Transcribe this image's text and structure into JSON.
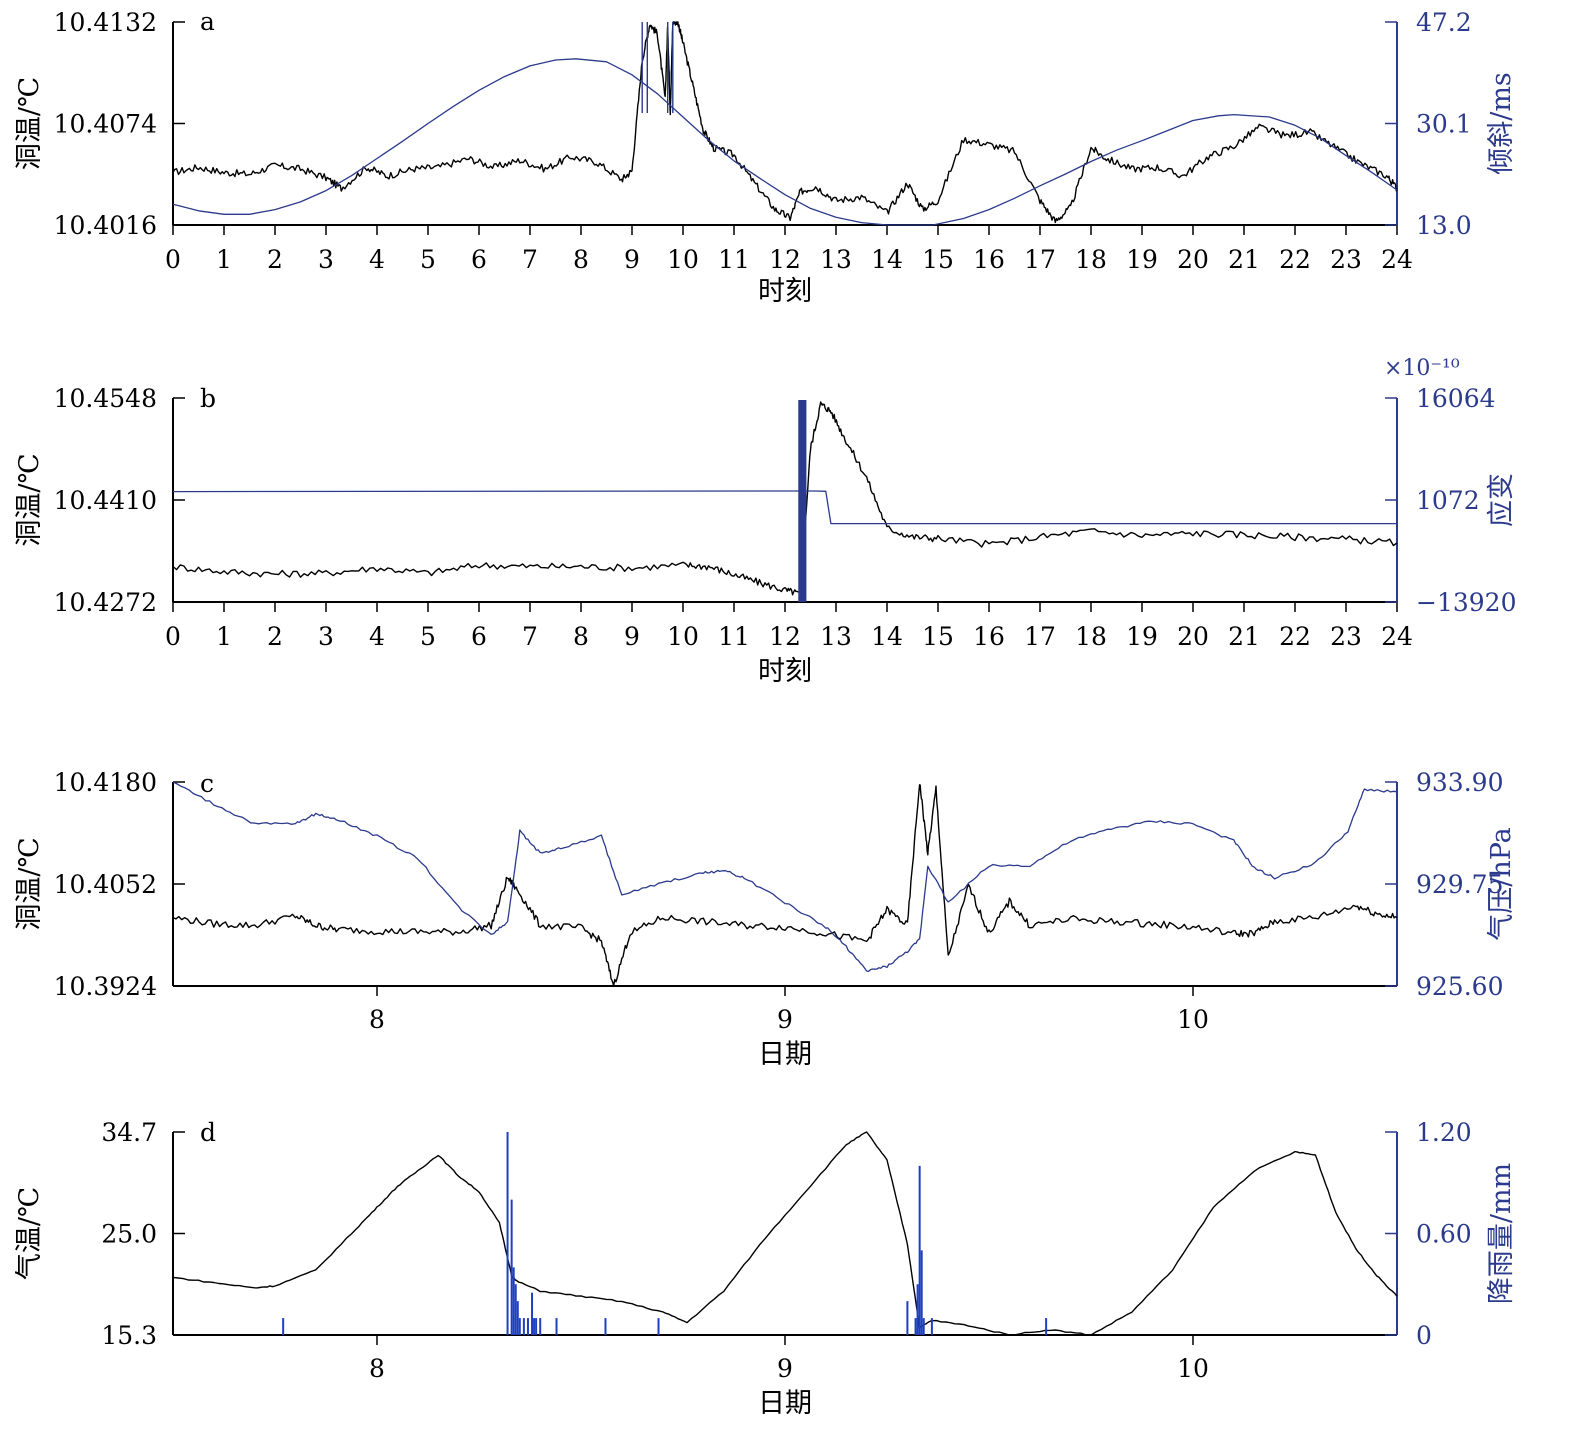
{
  "colors": {
    "left_series": "#000000",
    "right_series": "#2b3a8c",
    "rain_bars": "#1f3fbf"
  },
  "chart_data": [
    {
      "panel": "a",
      "type": "line",
      "xlabel": "时刻",
      "ylabel_left": "洞温/℃",
      "ylabel_right": "倾斜/ms",
      "xlim": [
        0,
        24
      ],
      "xticks": [
        "0",
        "1",
        "2",
        "3",
        "4",
        "5",
        "6",
        "7",
        "8",
        "9",
        "10",
        "11",
        "12",
        "13",
        "14",
        "15",
        "16",
        "17",
        "18",
        "19",
        "20",
        "21",
        "22",
        "23",
        "24"
      ],
      "ylim_left": [
        10.4016,
        10.4132
      ],
      "yticks_left": [
        "10.4016",
        "10.4074",
        "10.4132"
      ],
      "ylim_right": [
        13.0,
        47.2
      ],
      "yticks_right": [
        "13.0",
        "30.1",
        "47.2"
      ],
      "series": [
        {
          "axis": "left",
          "x": [
            0,
            0.5,
            1,
            1.5,
            2,
            2.5,
            3,
            3.3,
            3.8,
            4.2,
            4.7,
            5.2,
            5.8,
            6.3,
            6.8,
            7.3,
            7.8,
            8.3,
            8.8,
            9.0,
            9.2,
            9.35,
            9.5,
            9.65,
            9.7,
            9.75,
            9.8,
            9.9,
            10.0,
            10.2,
            10.4,
            10.6,
            11.0,
            11.4,
            11.8,
            12.1,
            12.3,
            12.6,
            13.0,
            13.5,
            14.0,
            14.4,
            14.7,
            15.0,
            15.5,
            16.0,
            16.5,
            17.0,
            17.3,
            17.6,
            18.0,
            18.3,
            18.8,
            19.3,
            19.8,
            20.3,
            20.8,
            21.3,
            21.8,
            22.3,
            22.8,
            23.3,
            23.8,
            24
          ],
          "y": [
            10.4046,
            10.4049,
            10.4046,
            10.4045,
            10.405,
            10.4048,
            10.4043,
            10.4037,
            10.4049,
            10.4044,
            10.4048,
            10.4049,
            10.4054,
            10.4049,
            10.4053,
            10.4048,
            10.4055,
            10.4052,
            10.4042,
            10.4047,
            10.411,
            10.4131,
            10.4125,
            10.4088,
            10.413,
            10.408,
            10.4132,
            10.4132,
            10.412,
            10.4095,
            10.407,
            10.406,
            10.4056,
            10.404,
            10.4025,
            10.402,
            10.4035,
            10.4038,
            10.403,
            10.4032,
            10.4023,
            10.404,
            10.4025,
            10.403,
            10.4065,
            10.4062,
            10.4058,
            10.403,
            10.4018,
            10.4026,
            10.406,
            10.4054,
            10.4048,
            10.4049,
            10.4044,
            10.4055,
            10.4061,
            10.4072,
            10.4067,
            10.4069,
            10.406,
            10.4051,
            10.4044,
            10.4037
          ]
        },
        {
          "axis": "right",
          "x": [
            0,
            0.5,
            1,
            1.5,
            2,
            2.5,
            3,
            3.5,
            4,
            4.5,
            5,
            5.5,
            6,
            6.5,
            7,
            7.5,
            7.9,
            8.5,
            9,
            9.5,
            10,
            10.5,
            11,
            11.5,
            12,
            12.5,
            13,
            13.5,
            14,
            14.5,
            14.9,
            15.5,
            16,
            16.5,
            17,
            17.5,
            18,
            18.5,
            19,
            19.5,
            20,
            20.5,
            20.8,
            21.5,
            22,
            22.5,
            23,
            23.5,
            24
          ],
          "y": [
            16.5,
            15.4,
            14.8,
            14.8,
            15.6,
            16.9,
            18.8,
            21.3,
            24.2,
            27.1,
            30.1,
            33.0,
            35.7,
            38.0,
            39.8,
            40.8,
            41.0,
            40.5,
            38.3,
            35.1,
            31.2,
            27.3,
            23.8,
            20.9,
            18.1,
            15.8,
            14.3,
            13.4,
            13.0,
            13.0,
            13.0,
            14.1,
            15.6,
            17.5,
            19.6,
            21.6,
            23.7,
            25.6,
            27.2,
            28.9,
            30.6,
            31.4,
            31.6,
            31.2,
            29.8,
            27.6,
            24.7,
            21.9,
            18.9
          ]
        }
      ]
    },
    {
      "panel": "b",
      "type": "line",
      "xlabel": "时刻",
      "ylabel_left": "洞温/℃",
      "ylabel_right": "应变",
      "exponent_label": "×10⁻¹⁰",
      "xlim": [
        0,
        24
      ],
      "xticks": [
        "0",
        "1",
        "2",
        "3",
        "4",
        "5",
        "6",
        "7",
        "8",
        "9",
        "10",
        "11",
        "12",
        "13",
        "14",
        "15",
        "16",
        "17",
        "18",
        "19",
        "20",
        "21",
        "22",
        "23",
        "24"
      ],
      "ylim_left": [
        10.4272,
        10.4548
      ],
      "yticks_left": [
        "10.4272",
        "10.4410",
        "10.4548"
      ],
      "ylim_right": [
        -13920,
        16064
      ],
      "yticks_right": [
        "−13920",
        "1072",
        "16064"
      ],
      "series": [
        {
          "axis": "left",
          "x": [
            0,
            1,
            2,
            3,
            4,
            5,
            6,
            7,
            8,
            9,
            10,
            10.5,
            11,
            11.5,
            12,
            12.3,
            12.5,
            12.7,
            12.9,
            13.2,
            13.6,
            14.0,
            14.5,
            15,
            16,
            17,
            18,
            19,
            20,
            21,
            22,
            23,
            24
          ],
          "y": [
            10.432,
            10.4313,
            10.431,
            10.4311,
            10.4318,
            10.4311,
            10.4322,
            10.432,
            10.432,
            10.4318,
            10.4322,
            10.432,
            10.4309,
            10.4298,
            10.4288,
            10.4283,
            10.448,
            10.454,
            10.453,
            10.449,
            10.444,
            10.4372,
            10.436,
            10.4358,
            10.435,
            10.436,
            10.4368,
            10.4362,
            10.4365,
            10.4363,
            10.436,
            10.4357,
            10.4352
          ]
        },
        {
          "axis": "right",
          "x": [
            0,
            12.3,
            12.6,
            12.8,
            12.9,
            24
          ],
          "y": [
            2300,
            2400,
            2400,
            2350,
            -2400,
            -2400
          ]
        }
      ]
    },
    {
      "panel": "c",
      "type": "line",
      "xlabel": "日期",
      "ylabel_left": "洞温/℃",
      "ylabel_right": "气压/hPa",
      "xlim": [
        7.5,
        10.5
      ],
      "xticks": [
        "8",
        "9",
        "10"
      ],
      "ylim_left": [
        10.3924,
        10.418
      ],
      "yticks_left": [
        "10.3924",
        "10.4052",
        "10.4180"
      ],
      "ylim_right": [
        925.6,
        933.9
      ],
      "yticks_right": [
        "925.60",
        "929.75",
        "933.90"
      ],
      "series": [
        {
          "axis": "left",
          "x": [
            7.5,
            7.6,
            7.7,
            7.8,
            7.85,
            7.9,
            8.0,
            8.1,
            8.2,
            8.28,
            8.32,
            8.35,
            8.4,
            8.5,
            8.55,
            8.58,
            8.62,
            8.7,
            8.8,
            8.9,
            9.0,
            9.1,
            9.2,
            9.25,
            9.3,
            9.33,
            9.35,
            9.37,
            9.4,
            9.45,
            9.5,
            9.55,
            9.6,
            9.7,
            9.8,
            9.9,
            10.0,
            10.1,
            10.15,
            10.2,
            10.3,
            10.4,
            10.45,
            10.5
          ],
          "y": [
            10.401,
            10.4002,
            10.4,
            10.4012,
            10.4,
            10.3995,
            10.3993,
            10.3992,
            10.3992,
            10.4,
            10.406,
            10.404,
            10.4,
            10.3997,
            10.398,
            10.3924,
            10.399,
            10.401,
            10.4005,
            10.4,
            10.3998,
            10.399,
            10.398,
            10.402,
            10.4,
            10.418,
            10.409,
            10.4172,
            10.396,
            10.405,
            10.399,
            10.403,
            10.4,
            10.4008,
            10.4005,
            10.4002,
            10.3998,
            10.399,
            10.399,
            10.4005,
            10.401,
            10.4025,
            10.4015,
            10.401
          ]
        },
        {
          "axis": "right",
          "x": [
            7.5,
            7.6,
            7.7,
            7.8,
            7.85,
            7.9,
            8.0,
            8.1,
            8.2,
            8.28,
            8.32,
            8.35,
            8.4,
            8.45,
            8.55,
            8.6,
            8.7,
            8.8,
            8.85,
            8.9,
            9.0,
            9.1,
            9.15,
            9.2,
            9.25,
            9.3,
            9.33,
            9.35,
            9.4,
            9.5,
            9.6,
            9.7,
            9.8,
            9.9,
            10.0,
            10.1,
            10.15,
            10.2,
            10.3,
            10.38,
            10.42,
            10.5
          ],
          "y": [
            933.9,
            933.0,
            932.2,
            932.2,
            932.6,
            932.4,
            931.7,
            930.8,
            928.8,
            927.7,
            928.2,
            931.9,
            931.0,
            931.2,
            931.7,
            929.3,
            929.8,
            930.2,
            930.3,
            930.0,
            929.0,
            928.0,
            927.2,
            926.2,
            926.4,
            927.0,
            927.5,
            930.5,
            929.0,
            930.5,
            930.5,
            931.5,
            932.0,
            932.3,
            932.2,
            931.5,
            930.4,
            930.0,
            930.6,
            931.9,
            933.6,
            933.5
          ]
        }
      ]
    },
    {
      "panel": "d",
      "type": "line",
      "xlabel": "日期",
      "ylabel_left": "气温/℃",
      "ylabel_right": "降雨量/mm",
      "xlim": [
        7.5,
        10.5
      ],
      "xticks": [
        "8",
        "9",
        "10"
      ],
      "ylim_left": [
        15.3,
        34.7
      ],
      "yticks_left": [
        "15.3",
        "25.0",
        "34.7"
      ],
      "ylim_right": [
        0,
        1.2
      ],
      "yticks_right": [
        "0",
        "0.60",
        "1.20"
      ],
      "series": [
        {
          "axis": "left",
          "name": "",
          "x": [
            7.5,
            7.6,
            7.7,
            7.75,
            7.85,
            7.95,
            8.0,
            8.05,
            8.1,
            8.15,
            8.2,
            8.25,
            8.3,
            8.33,
            8.34,
            8.4,
            8.5,
            8.6,
            8.7,
            8.76,
            8.85,
            8.95,
            9.05,
            9.15,
            9.2,
            9.25,
            9.3,
            9.33,
            9.36,
            9.45,
            9.55,
            9.65,
            9.75,
            9.85,
            9.95,
            10.05,
            10.15,
            10.25,
            10.3,
            10.35,
            10.4,
            10.45,
            10.5
          ],
          "y": [
            20.8,
            20.3,
            19.8,
            20.0,
            21.5,
            25.5,
            27.5,
            29.5,
            31.0,
            32.5,
            30.5,
            29.0,
            26.0,
            21.0,
            20.5,
            19.5,
            19.0,
            18.5,
            17.5,
            16.5,
            19.5,
            24.5,
            29.0,
            33.5,
            34.7,
            32.0,
            24.0,
            16.0,
            16.7,
            16.2,
            15.3,
            15.8,
            15.3,
            17.5,
            21.5,
            27.5,
            31.0,
            32.8,
            32.5,
            27.0,
            23.5,
            21.0,
            19.0
          ]
        }
      ],
      "rain_bars": {
        "x": [
          7.77,
          8.32,
          8.33,
          8.335,
          8.34,
          8.345,
          8.35,
          8.36,
          8.37,
          8.38,
          8.385,
          8.39,
          8.4,
          8.44,
          8.56,
          8.69,
          9.3,
          9.32,
          9.325,
          9.33,
          9.335,
          9.34,
          9.36,
          9.64
        ],
        "y": [
          0.1,
          1.2,
          0.8,
          0.4,
          0.3,
          0.2,
          0.1,
          0.1,
          0.1,
          0.25,
          0.1,
          0.1,
          0.1,
          0.1,
          0.1,
          0.1,
          0.2,
          0.1,
          0.3,
          1.0,
          0.5,
          0.1,
          0.1,
          0.1
        ]
      }
    }
  ]
}
